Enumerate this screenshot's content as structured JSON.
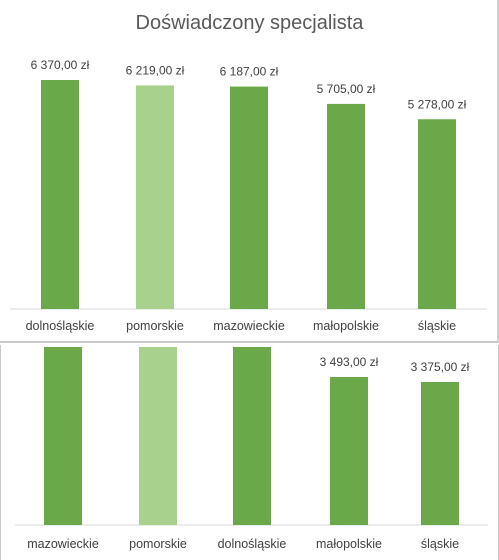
{
  "chart_data": [
    {
      "type": "bar",
      "title": "Doświadczony specjalista",
      "categories": [
        "dolnośląskie",
        "pomorskie",
        "mazowieckie",
        "małopolskie",
        "śląskie"
      ],
      "values": [
        6370,
        6219,
        6187,
        5705,
        5278
      ],
      "value_labels": [
        "6 370,00 zł",
        "6 219,00 zł",
        "6 187,00 zł",
        "5 705,00 zł",
        "5 278,00 zł"
      ],
      "highlight_index": 1,
      "colors": {
        "bar": "#6aa84a",
        "highlight": "#a9d18e",
        "axis": "#d9d9d9"
      }
    },
    {
      "type": "bar",
      "title": "",
      "categories": [
        "mazowieckie",
        "pomorskie",
        "dolnośląskie",
        "małopolskie",
        "śląskie"
      ],
      "values": [
        null,
        null,
        null,
        3493,
        3375
      ],
      "value_labels": [
        "",
        "",
        "",
        "3 493,00 zł",
        "3 375,00 zł"
      ],
      "highlight_index": 1,
      "colors": {
        "bar": "#6aa84a",
        "highlight": "#a9d18e",
        "axis": "#d9d9d9"
      }
    }
  ]
}
